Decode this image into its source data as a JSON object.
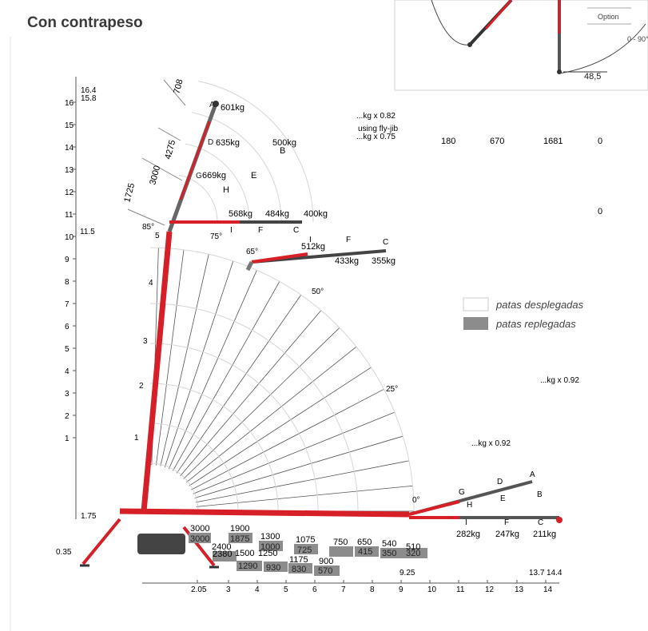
{
  "title": "Con contrapeso",
  "inset": {
    "option_label": "Option",
    "angle_label": "0 - 90°",
    "offset_label": "48,5"
  },
  "y_ticks": [
    "1",
    "2",
    "3",
    "4",
    "5",
    "6",
    "7",
    "8",
    "9",
    "10",
    "11",
    "12",
    "13",
    "14",
    "15",
    "16"
  ],
  "y_extra": {
    "top_a": "16.4",
    "top_b": "15.8",
    "mid": "11.5",
    "low": "1.75",
    "base": "0.35"
  },
  "x_ticks": [
    "2.05",
    "3",
    "4",
    "5",
    "6",
    "7",
    "8",
    "9",
    "10",
    "11",
    "12",
    "13",
    "14"
  ],
  "x_extra": {
    "a": "9.25",
    "b": "13.7",
    "c": "14.4"
  },
  "dims": [
    "708",
    "4275",
    "3000",
    "1725"
  ],
  "boom_sections": [
    "1",
    "2",
    "3",
    "4",
    "5"
  ],
  "vertical_loads": {
    "A": "601kg",
    "D": "635kg",
    "G": "669kg",
    "E": "E",
    "H": "H",
    "B": "B",
    "B_load": "500kg"
  },
  "jib_85": {
    "angle": "85°",
    "angle2": "75°",
    "l1": "568kg",
    "l2": "484kg",
    "l3": "400kg",
    "I": "I",
    "F": "F",
    "C": "C"
  },
  "jib_65": {
    "angle": "65°",
    "I_load": "512kg",
    "I": "I",
    "F": "F",
    "C": "C",
    "F_load": "433kg",
    "C_load": "355kg"
  },
  "angles": {
    "a50": "50°",
    "a25": "25°",
    "a0": "0°"
  },
  "horizontal_loads": {
    "A": "A",
    "B": "B",
    "D": "D",
    "E": "E",
    "G": "G",
    "H": "H",
    "I": "I",
    "F": "F",
    "C": "C",
    "I_load": "282kg",
    "F_load": "247kg",
    "C_load": "211kg"
  },
  "multipliers": {
    "fly_a": "...kg x 0.82",
    "fly_label": "using fly-jib",
    "fly_b": "...kg x 0.75",
    "m1": "...kg x 0.92",
    "m2": "...kg x 0.92"
  },
  "table_row": [
    "180",
    "670",
    "1681",
    "0"
  ],
  "table_row2": "0",
  "legend": {
    "deployed": "patas desplegadas",
    "retracted": "patas replegadas"
  },
  "capacities_white": [
    "3000",
    "1900",
    "1300",
    "2400",
    "1075",
    "750",
    "650",
    "540",
    "510",
    "1500",
    "1250",
    "1175",
    "900",
    "2380"
  ],
  "capacities_grey": [
    "3000",
    "1875",
    "1000",
    "725",
    "415",
    "350",
    "320",
    "1290",
    "930",
    "830",
    "570"
  ],
  "colors": {
    "boom": "#d61f26",
    "dark": "#333333",
    "grey_box": "#8c8c8c",
    "grid": "#cccccc"
  }
}
